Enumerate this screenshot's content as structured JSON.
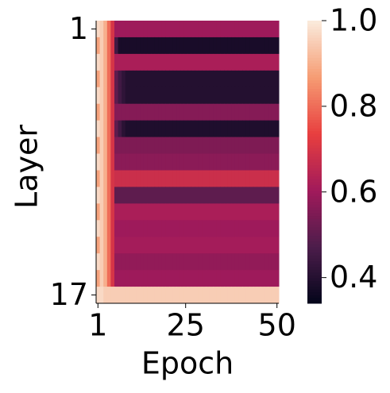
{
  "chart_data": {
    "type": "heatmap",
    "x_label": "Epoch",
    "y_label": "Layer",
    "xlim": [
      0.5,
      50.5
    ],
    "xticks": [
      1,
      25,
      50
    ],
    "ylim": [
      0.5,
      17.5
    ],
    "yticks": [
      1,
      17
    ],
    "clim": [
      0.34,
      1.0
    ],
    "cticks": [
      {
        "value": 0.4,
        "label": "0.4"
      },
      {
        "value": 0.6,
        "label": "0.6"
      },
      {
        "value": 0.8,
        "label": "0.8"
      },
      {
        "value": 1.0,
        "label": "1.0"
      }
    ],
    "colormap": "rocket",
    "z": [
      [
        0.97,
        0.95,
        0.9,
        0.8,
        0.7,
        0.6,
        0.6,
        0.6,
        0.6,
        0.6,
        0.6,
        0.6,
        0.6,
        0.6,
        0.6,
        0.6,
        0.6,
        0.6,
        0.6,
        0.6,
        0.6,
        0.6,
        0.6,
        0.6,
        0.6,
        0.6,
        0.6,
        0.6,
        0.6,
        0.6,
        0.6,
        0.6,
        0.6,
        0.6,
        0.6,
        0.6,
        0.6,
        0.6,
        0.6,
        0.6,
        0.6,
        0.6,
        0.6,
        0.6,
        0.6,
        0.6,
        0.6,
        0.6,
        0.6,
        0.6
      ],
      [
        0.88,
        0.95,
        0.9,
        0.8,
        0.7,
        0.45,
        0.38,
        0.38,
        0.38,
        0.38,
        0.38,
        0.38,
        0.38,
        0.38,
        0.38,
        0.38,
        0.38,
        0.38,
        0.38,
        0.38,
        0.38,
        0.38,
        0.38,
        0.38,
        0.38,
        0.38,
        0.38,
        0.38,
        0.38,
        0.38,
        0.38,
        0.38,
        0.38,
        0.38,
        0.38,
        0.38,
        0.38,
        0.38,
        0.38,
        0.38,
        0.38,
        0.38,
        0.38,
        0.38,
        0.38,
        0.38,
        0.38,
        0.38,
        0.38,
        0.38
      ],
      [
        0.97,
        0.95,
        0.9,
        0.8,
        0.7,
        0.62,
        0.62,
        0.62,
        0.62,
        0.62,
        0.62,
        0.62,
        0.62,
        0.62,
        0.62,
        0.62,
        0.62,
        0.62,
        0.62,
        0.62,
        0.62,
        0.62,
        0.62,
        0.62,
        0.62,
        0.62,
        0.62,
        0.62,
        0.62,
        0.62,
        0.62,
        0.62,
        0.62,
        0.62,
        0.62,
        0.62,
        0.62,
        0.62,
        0.62,
        0.62,
        0.62,
        0.62,
        0.62,
        0.62,
        0.62,
        0.62,
        0.62,
        0.62,
        0.62,
        0.62
      ],
      [
        0.88,
        0.95,
        0.9,
        0.8,
        0.7,
        0.5,
        0.45,
        0.42,
        0.4,
        0.4,
        0.4,
        0.4,
        0.4,
        0.4,
        0.4,
        0.4,
        0.4,
        0.4,
        0.4,
        0.4,
        0.4,
        0.4,
        0.4,
        0.4,
        0.4,
        0.4,
        0.4,
        0.4,
        0.4,
        0.4,
        0.4,
        0.4,
        0.4,
        0.4,
        0.4,
        0.4,
        0.4,
        0.4,
        0.4,
        0.4,
        0.4,
        0.4,
        0.4,
        0.4,
        0.4,
        0.4,
        0.4,
        0.4,
        0.4,
        0.4
      ],
      [
        0.97,
        0.95,
        0.9,
        0.8,
        0.7,
        0.5,
        0.45,
        0.42,
        0.4,
        0.4,
        0.4,
        0.4,
        0.4,
        0.4,
        0.4,
        0.4,
        0.4,
        0.4,
        0.4,
        0.4,
        0.4,
        0.4,
        0.4,
        0.4,
        0.4,
        0.4,
        0.4,
        0.4,
        0.4,
        0.4,
        0.4,
        0.4,
        0.4,
        0.4,
        0.4,
        0.4,
        0.4,
        0.4,
        0.4,
        0.4,
        0.4,
        0.4,
        0.4,
        0.4,
        0.4,
        0.4,
        0.4,
        0.4,
        0.4,
        0.4
      ],
      [
        0.88,
        0.95,
        0.9,
        0.8,
        0.7,
        0.56,
        0.56,
        0.56,
        0.56,
        0.56,
        0.56,
        0.56,
        0.56,
        0.56,
        0.56,
        0.56,
        0.56,
        0.56,
        0.56,
        0.56,
        0.56,
        0.56,
        0.56,
        0.56,
        0.56,
        0.56,
        0.56,
        0.56,
        0.56,
        0.56,
        0.56,
        0.56,
        0.56,
        0.56,
        0.56,
        0.56,
        0.56,
        0.56,
        0.56,
        0.56,
        0.56,
        0.56,
        0.56,
        0.56,
        0.56,
        0.56,
        0.56,
        0.56,
        0.56,
        0.56
      ],
      [
        0.97,
        0.95,
        0.9,
        0.8,
        0.7,
        0.5,
        0.45,
        0.41,
        0.39,
        0.39,
        0.39,
        0.39,
        0.39,
        0.39,
        0.39,
        0.39,
        0.39,
        0.39,
        0.39,
        0.39,
        0.39,
        0.39,
        0.39,
        0.39,
        0.39,
        0.39,
        0.39,
        0.39,
        0.39,
        0.39,
        0.39,
        0.39,
        0.39,
        0.39,
        0.39,
        0.39,
        0.39,
        0.39,
        0.39,
        0.39,
        0.39,
        0.39,
        0.39,
        0.39,
        0.39,
        0.39,
        0.39,
        0.39,
        0.39,
        0.39
      ],
      [
        0.88,
        0.95,
        0.9,
        0.8,
        0.7,
        0.55,
        0.55,
        0.55,
        0.55,
        0.55,
        0.55,
        0.55,
        0.55,
        0.55,
        0.55,
        0.55,
        0.55,
        0.55,
        0.55,
        0.55,
        0.55,
        0.55,
        0.55,
        0.55,
        0.55,
        0.55,
        0.55,
        0.55,
        0.55,
        0.55,
        0.55,
        0.55,
        0.55,
        0.55,
        0.55,
        0.55,
        0.55,
        0.55,
        0.55,
        0.55,
        0.55,
        0.55,
        0.55,
        0.55,
        0.55,
        0.55,
        0.55,
        0.55,
        0.55,
        0.55
      ],
      [
        0.97,
        0.95,
        0.9,
        0.8,
        0.7,
        0.57,
        0.57,
        0.57,
        0.57,
        0.57,
        0.57,
        0.57,
        0.57,
        0.57,
        0.57,
        0.57,
        0.57,
        0.57,
        0.57,
        0.57,
        0.57,
        0.57,
        0.57,
        0.57,
        0.57,
        0.57,
        0.57,
        0.57,
        0.57,
        0.57,
        0.57,
        0.57,
        0.57,
        0.57,
        0.57,
        0.57,
        0.57,
        0.57,
        0.57,
        0.57,
        0.57,
        0.57,
        0.57,
        0.57,
        0.57,
        0.57,
        0.57,
        0.57,
        0.57,
        0.57
      ],
      [
        0.88,
        0.95,
        0.9,
        0.8,
        0.7,
        0.68,
        0.68,
        0.68,
        0.68,
        0.68,
        0.68,
        0.68,
        0.68,
        0.68,
        0.68,
        0.68,
        0.68,
        0.68,
        0.68,
        0.68,
        0.68,
        0.68,
        0.68,
        0.68,
        0.68,
        0.68,
        0.68,
        0.68,
        0.68,
        0.68,
        0.68,
        0.68,
        0.68,
        0.68,
        0.68,
        0.68,
        0.68,
        0.68,
        0.68,
        0.68,
        0.68,
        0.68,
        0.68,
        0.68,
        0.68,
        0.68,
        0.68,
        0.68,
        0.68,
        0.68
      ],
      [
        0.97,
        0.95,
        0.9,
        0.8,
        0.7,
        0.5,
        0.5,
        0.5,
        0.5,
        0.5,
        0.5,
        0.5,
        0.5,
        0.5,
        0.5,
        0.5,
        0.5,
        0.5,
        0.5,
        0.5,
        0.5,
        0.5,
        0.5,
        0.5,
        0.5,
        0.5,
        0.5,
        0.5,
        0.5,
        0.5,
        0.5,
        0.5,
        0.5,
        0.5,
        0.5,
        0.5,
        0.5,
        0.5,
        0.5,
        0.5,
        0.5,
        0.5,
        0.5,
        0.5,
        0.5,
        0.5,
        0.5,
        0.5,
        0.5,
        0.5
      ],
      [
        0.88,
        0.95,
        0.9,
        0.8,
        0.7,
        0.62,
        0.62,
        0.62,
        0.62,
        0.62,
        0.62,
        0.62,
        0.62,
        0.62,
        0.62,
        0.62,
        0.62,
        0.62,
        0.62,
        0.62,
        0.62,
        0.62,
        0.62,
        0.62,
        0.62,
        0.62,
        0.62,
        0.62,
        0.62,
        0.62,
        0.62,
        0.62,
        0.62,
        0.62,
        0.62,
        0.62,
        0.62,
        0.62,
        0.62,
        0.62,
        0.62,
        0.62,
        0.62,
        0.62,
        0.62,
        0.62,
        0.62,
        0.62,
        0.62,
        0.62
      ],
      [
        0.97,
        0.95,
        0.9,
        0.8,
        0.7,
        0.6,
        0.6,
        0.6,
        0.6,
        0.6,
        0.6,
        0.6,
        0.6,
        0.6,
        0.6,
        0.6,
        0.6,
        0.6,
        0.6,
        0.6,
        0.6,
        0.6,
        0.6,
        0.6,
        0.6,
        0.6,
        0.6,
        0.6,
        0.6,
        0.6,
        0.6,
        0.6,
        0.6,
        0.6,
        0.6,
        0.6,
        0.6,
        0.6,
        0.6,
        0.6,
        0.6,
        0.6,
        0.6,
        0.6,
        0.6,
        0.6,
        0.6,
        0.6,
        0.6,
        0.6
      ],
      [
        0.88,
        0.95,
        0.9,
        0.8,
        0.7,
        0.61,
        0.61,
        0.61,
        0.61,
        0.61,
        0.61,
        0.61,
        0.61,
        0.61,
        0.61,
        0.61,
        0.61,
        0.61,
        0.61,
        0.61,
        0.61,
        0.61,
        0.61,
        0.61,
        0.61,
        0.61,
        0.61,
        0.61,
        0.61,
        0.61,
        0.61,
        0.61,
        0.61,
        0.61,
        0.61,
        0.61,
        0.61,
        0.61,
        0.61,
        0.61,
        0.61,
        0.61,
        0.61,
        0.61,
        0.61,
        0.61,
        0.61,
        0.61,
        0.61,
        0.61
      ],
      [
        0.97,
        0.95,
        0.9,
        0.8,
        0.7,
        0.58,
        0.58,
        0.58,
        0.58,
        0.58,
        0.58,
        0.58,
        0.58,
        0.58,
        0.58,
        0.58,
        0.58,
        0.58,
        0.58,
        0.58,
        0.58,
        0.58,
        0.58,
        0.58,
        0.58,
        0.58,
        0.58,
        0.58,
        0.58,
        0.58,
        0.58,
        0.58,
        0.58,
        0.58,
        0.58,
        0.58,
        0.58,
        0.58,
        0.58,
        0.58,
        0.58,
        0.58,
        0.58,
        0.58,
        0.58,
        0.58,
        0.58,
        0.58,
        0.58,
        0.58
      ],
      [
        0.88,
        0.95,
        0.9,
        0.8,
        0.7,
        0.6,
        0.6,
        0.6,
        0.6,
        0.6,
        0.6,
        0.6,
        0.6,
        0.6,
        0.6,
        0.6,
        0.6,
        0.6,
        0.6,
        0.6,
        0.6,
        0.6,
        0.6,
        0.6,
        0.6,
        0.6,
        0.6,
        0.6,
        0.6,
        0.6,
        0.6,
        0.6,
        0.6,
        0.6,
        0.6,
        0.6,
        0.6,
        0.6,
        0.6,
        0.6,
        0.6,
        0.6,
        0.6,
        0.6,
        0.6,
        0.6,
        0.6,
        0.6,
        0.6,
        0.6
      ],
      [
        0.97,
        0.97,
        0.95,
        0.95,
        0.95,
        0.95,
        0.95,
        0.95,
        0.95,
        0.95,
        0.95,
        0.95,
        0.95,
        0.95,
        0.95,
        0.95,
        0.95,
        0.95,
        0.95,
        0.95,
        0.95,
        0.95,
        0.95,
        0.95,
        0.95,
        0.95,
        0.95,
        0.95,
        0.95,
        0.95,
        0.95,
        0.95,
        0.95,
        0.95,
        0.95,
        0.95,
        0.95,
        0.95,
        0.95,
        0.95,
        0.95,
        0.95,
        0.95,
        0.95,
        0.95,
        0.95,
        0.95,
        0.95,
        0.95,
        0.95
      ]
    ]
  }
}
